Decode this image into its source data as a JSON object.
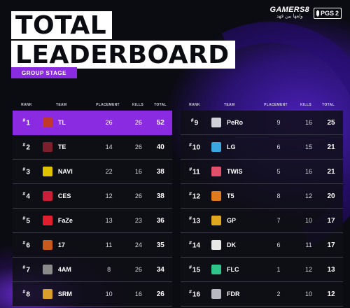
{
  "header": {
    "title_line1": "TOTAL",
    "title_line2": "LEADERBOARD",
    "stage": "GROUP STAGE",
    "gamers8_logo": "GAMERS8",
    "gamers8_sub": "ولعها بين فهد",
    "pgs_logo": "PGS",
    "pgs_number": "2"
  },
  "columns": {
    "rank": "RANK",
    "team": "TEAM",
    "placement": "PLACEMENT",
    "kills": "KILLS",
    "total": "TOTAL"
  },
  "left_rows": [
    {
      "rank": "1",
      "team": "TL",
      "placement": "26",
      "kills": "26",
      "total": "52",
      "color": "#c0392b",
      "highlight": true
    },
    {
      "rank": "2",
      "team": "TE",
      "placement": "14",
      "kills": "26",
      "total": "40",
      "color": "#7a1f2b",
      "highlight": false
    },
    {
      "rank": "3",
      "team": "NAVI",
      "placement": "22",
      "kills": "16",
      "total": "38",
      "color": "#e0c300",
      "highlight": false
    },
    {
      "rank": "4",
      "team": "CES",
      "placement": "12",
      "kills": "26",
      "total": "38",
      "color": "#c81e3a",
      "highlight": false
    },
    {
      "rank": "5",
      "team": "FaZe",
      "placement": "13",
      "kills": "23",
      "total": "36",
      "color": "#e01e2e",
      "highlight": false
    },
    {
      "rank": "6",
      "team": "17",
      "placement": "11",
      "kills": "24",
      "total": "35",
      "color": "#c85a1e",
      "highlight": false
    },
    {
      "rank": "7",
      "team": "4AM",
      "placement": "8",
      "kills": "26",
      "total": "34",
      "color": "#8a8a8a",
      "highlight": false
    },
    {
      "rank": "8",
      "team": "SRM",
      "placement": "10",
      "kills": "16",
      "total": "26",
      "color": "#d8a02a",
      "highlight": false
    }
  ],
  "right_rows": [
    {
      "rank": "9",
      "team": "PeRo",
      "placement": "9",
      "kills": "16",
      "total": "25",
      "color": "#d0d0d8"
    },
    {
      "rank": "10",
      "team": "LG",
      "placement": "6",
      "kills": "15",
      "total": "21",
      "color": "#3aa7e0"
    },
    {
      "rank": "11",
      "team": "TWIS",
      "placement": "5",
      "kills": "16",
      "total": "21",
      "color": "#e0506a"
    },
    {
      "rank": "12",
      "team": "T5",
      "placement": "8",
      "kills": "12",
      "total": "20",
      "color": "#e07a1e"
    },
    {
      "rank": "13",
      "team": "GP",
      "placement": "7",
      "kills": "10",
      "total": "17",
      "color": "#e0a81e"
    },
    {
      "rank": "14",
      "team": "DK",
      "placement": "6",
      "kills": "11",
      "total": "17",
      "color": "#e8e8e8"
    },
    {
      "rank": "15",
      "team": "FLC",
      "placement": "1",
      "kills": "12",
      "total": "13",
      "color": "#2ec48a"
    },
    {
      "rank": "16",
      "team": "FDR",
      "placement": "2",
      "kills": "10",
      "total": "12",
      "color": "#b8b8c0"
    }
  ],
  "icons": {
    "team_logo": "team-logo-icon"
  }
}
